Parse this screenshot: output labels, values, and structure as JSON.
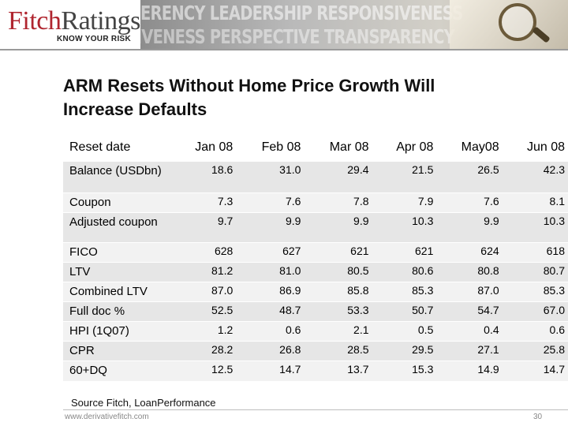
{
  "header": {
    "logo_fitch": "Fitch",
    "logo_ratings": "Ratings",
    "tagline": "KNOW YOUR RISK",
    "banner_line_1": "ERENCY LEADERSHIP RESPONSIVENESS",
    "banner_line_2": "NSIVENESS PERSPECTIVE TRANSPARENCY"
  },
  "slide": {
    "title_line_1": "ARM Resets Without Home Price Growth Will",
    "title_line_2": "Increase Defaults"
  },
  "table": {
    "corner_label": "Reset date",
    "columns": [
      "Jan 08",
      "Feb 08",
      "Mar 08",
      "Apr 08",
      "May08",
      "Jun 08"
    ],
    "rows": [
      {
        "label": "Balance (USDbn)",
        "values": [
          "18.6",
          "31.0",
          "29.4",
          "21.5",
          "26.5",
          "42.3"
        ]
      },
      {
        "label": "Coupon",
        "values": [
          "7.3",
          "7.6",
          "7.8",
          "7.9",
          "7.6",
          "8.1"
        ]
      },
      {
        "label": "Adjusted coupon",
        "values": [
          "9.7",
          "9.9",
          "9.9",
          "10.3",
          "9.9",
          "10.3"
        ]
      },
      {
        "label": "FICO",
        "values": [
          "628",
          "627",
          "621",
          "621",
          "624",
          "618"
        ]
      },
      {
        "label": "LTV",
        "values": [
          "81.2",
          "81.0",
          "80.5",
          "80.6",
          "80.8",
          "80.7"
        ]
      },
      {
        "label": "Combined LTV",
        "values": [
          "87.0",
          "86.9",
          "85.8",
          "85.3",
          "87.0",
          "85.3"
        ]
      },
      {
        "label": "Full doc %",
        "values": [
          "52.5",
          "48.7",
          "53.3",
          "50.7",
          "54.7",
          "67.0"
        ]
      },
      {
        "label": "HPI (1Q07)",
        "values": [
          "1.2",
          "0.6",
          "2.1",
          "0.5",
          "0.4",
          "0.6"
        ]
      },
      {
        "label": "CPR",
        "values": [
          "28.2",
          "26.8",
          "28.5",
          "29.5",
          "27.1",
          "25.8"
        ]
      },
      {
        "label": "60+DQ",
        "values": [
          "12.5",
          "14.7",
          "13.7",
          "15.3",
          "14.9",
          "14.7"
        ]
      }
    ]
  },
  "footer": {
    "source": "Source Fitch, LoanPerformance",
    "url": "www.derivativefitch.com",
    "page_number": "30"
  },
  "colors": {
    "brand_red": "#b0252f",
    "row_dark": "#e6e6e6",
    "row_light": "#f2f2f2"
  }
}
